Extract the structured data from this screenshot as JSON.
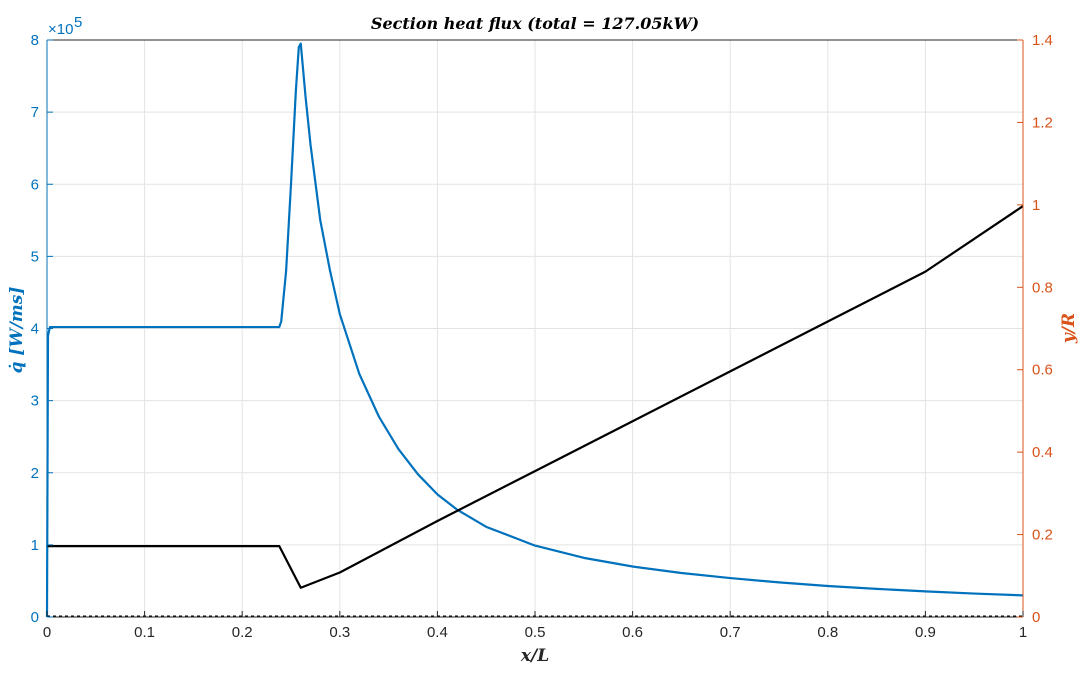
{
  "chart_data": {
    "type": "line",
    "title": "Section heat flux (total = 127.05kW)",
    "xlabel": "x/L",
    "ylabel_left": "q̇ [W/ms]",
    "ylabel_right": "y/R",
    "xlim": [
      0,
      1
    ],
    "ylim_left": [
      0,
      8
    ],
    "ylim_right": [
      0,
      1.4
    ],
    "left_exponent_label": "×10",
    "left_exponent_power": "5",
    "x_ticks": [
      "0",
      "0.1",
      "0.2",
      "0.3",
      "0.4",
      "0.5",
      "0.6",
      "0.7",
      "0.8",
      "0.9",
      "1"
    ],
    "y_left_ticks": [
      "0",
      "1",
      "2",
      "3",
      "4",
      "5",
      "6",
      "7",
      "8"
    ],
    "y_right_ticks": [
      "0",
      "0.2",
      "0.4",
      "0.6",
      "0.8",
      "1",
      "1.2",
      "1.4"
    ],
    "grid": true,
    "colors": {
      "left": "#0072BD",
      "right": "#D95319",
      "contour": "#000000"
    },
    "series": [
      {
        "axis": "left",
        "color": "#0072BD",
        "x": [
          0,
          0.001,
          0.003,
          0.05,
          0.1,
          0.15,
          0.2,
          0.238,
          0.24,
          0.245,
          0.25,
          0.255,
          0.258,
          0.26,
          0.265,
          0.27,
          0.28,
          0.29,
          0.3,
          0.32,
          0.34,
          0.36,
          0.38,
          0.4,
          0.42,
          0.45,
          0.5,
          0.55,
          0.6,
          0.65,
          0.7,
          0.75,
          0.8,
          0.85,
          0.9,
          0.95,
          1.0
        ],
        "y": [
          0,
          3.9,
          4.02,
          4.02,
          4.02,
          4.02,
          4.02,
          4.02,
          4.1,
          4.8,
          6.0,
          7.3,
          7.9,
          7.95,
          7.2,
          6.55,
          5.5,
          4.8,
          4.2,
          3.37,
          2.78,
          2.33,
          1.98,
          1.7,
          1.49,
          1.25,
          0.99,
          0.82,
          0.7,
          0.61,
          0.54,
          0.48,
          0.43,
          0.39,
          0.355,
          0.325,
          0.3
        ]
      },
      {
        "axis": "right",
        "color": "#000000",
        "x": [
          0,
          0.05,
          0.1,
          0.15,
          0.2,
          0.238,
          0.26,
          0.3,
          0.4,
          0.5,
          0.6,
          0.7,
          0.8,
          0.9,
          1.0
        ],
        "y": [
          0.172,
          0.172,
          0.172,
          0.172,
          0.172,
          0.172,
          0.071,
          0.108,
          0.233,
          0.354,
          0.475,
          0.596,
          0.717,
          0.838,
          0.997
        ]
      }
    ]
  }
}
